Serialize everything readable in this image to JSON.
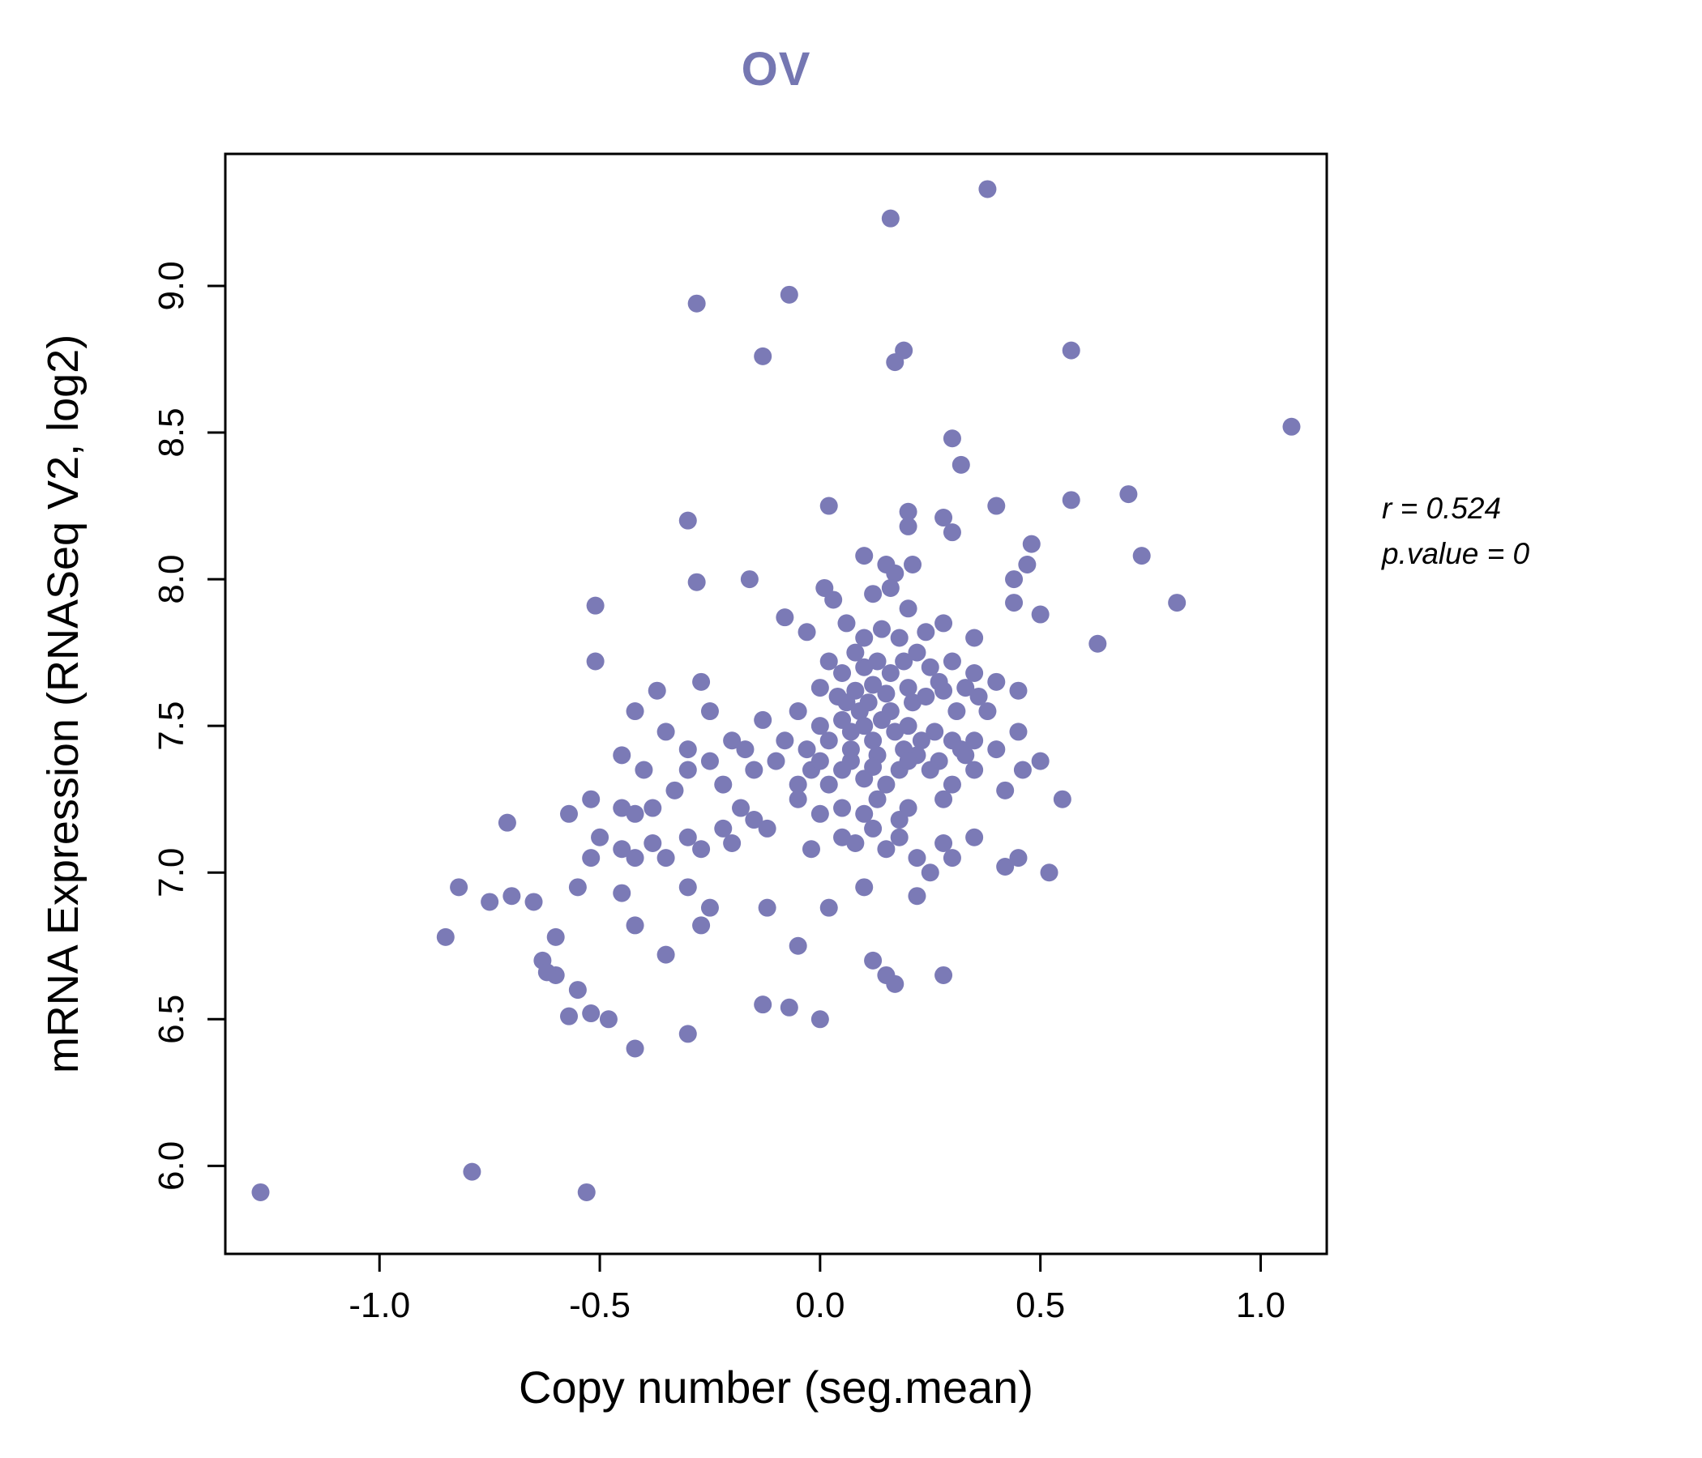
{
  "chart_data": {
    "type": "scatter",
    "title": "OV",
    "xlabel": "Copy number (seg.mean)",
    "ylabel": "mRNA Expression (RNASeq V2, log2)",
    "annotation": {
      "line1": "r = 0.524",
      "line2": "p.value = 0"
    },
    "xlim": [
      -1.35,
      1.15
    ],
    "ylim": [
      5.7,
      9.45
    ],
    "x_ticks": [
      -1.0,
      -0.5,
      0.0,
      0.5,
      1.0
    ],
    "x_tick_labels": [
      "-1.0",
      "-0.5",
      "0.0",
      "0.5",
      "1.0"
    ],
    "y_ticks": [
      6.0,
      6.5,
      7.0,
      7.5,
      8.0,
      8.5,
      9.0
    ],
    "y_tick_labels": [
      "6.0",
      "6.5",
      "7.0",
      "7.5",
      "8.0",
      "8.5",
      "9.0"
    ],
    "grid": false,
    "legend": "none",
    "point_color": "#7b7ab6",
    "title_color": "#7577b2",
    "axis_color": "#000000",
    "points": [
      [
        0.38,
        9.33
      ],
      [
        0.16,
        9.23
      ],
      [
        -0.07,
        8.97
      ],
      [
        -0.28,
        8.94
      ],
      [
        0.19,
        8.78
      ],
      [
        0.17,
        8.74
      ],
      [
        -0.13,
        8.76
      ],
      [
        0.57,
        8.78
      ],
      [
        1.07,
        8.52
      ],
      [
        0.3,
        8.48
      ],
      [
        0.32,
        8.39
      ],
      [
        0.7,
        8.29
      ],
      [
        0.57,
        8.27
      ],
      [
        0.02,
        8.25
      ],
      [
        0.4,
        8.25
      ],
      [
        -0.3,
        8.2
      ],
      [
        0.2,
        8.23
      ],
      [
        0.2,
        8.18
      ],
      [
        0.28,
        8.21
      ],
      [
        0.3,
        8.16
      ],
      [
        0.48,
        8.12
      ],
      [
        0.73,
        8.08
      ],
      [
        0.1,
        8.08
      ],
      [
        0.15,
        8.05
      ],
      [
        0.17,
        8.02
      ],
      [
        0.21,
        8.05
      ],
      [
        0.47,
        8.05
      ],
      [
        0.44,
        8.0
      ],
      [
        -0.28,
        7.99
      ],
      [
        -0.16,
        8.0
      ],
      [
        0.01,
        7.97
      ],
      [
        0.03,
        7.93
      ],
      [
        0.81,
        7.92
      ],
      [
        -0.51,
        7.91
      ],
      [
        0.12,
        7.95
      ],
      [
        0.16,
        7.97
      ],
      [
        0.2,
        7.9
      ],
      [
        0.44,
        7.92
      ],
      [
        0.5,
        7.88
      ],
      [
        0.63,
        7.78
      ],
      [
        -0.08,
        7.87
      ],
      [
        -0.03,
        7.82
      ],
      [
        0.06,
        7.85
      ],
      [
        0.1,
        7.8
      ],
      [
        0.14,
        7.83
      ],
      [
        0.18,
        7.8
      ],
      [
        0.24,
        7.82
      ],
      [
        0.28,
        7.85
      ],
      [
        0.35,
        7.8
      ],
      [
        -0.51,
        7.72
      ],
      [
        0.02,
        7.72
      ],
      [
        0.05,
        7.68
      ],
      [
        0.08,
        7.75
      ],
      [
        0.1,
        7.7
      ],
      [
        0.13,
        7.72
      ],
      [
        0.16,
        7.68
      ],
      [
        0.19,
        7.72
      ],
      [
        0.22,
        7.75
      ],
      [
        0.25,
        7.7
      ],
      [
        0.3,
        7.72
      ],
      [
        0.35,
        7.68
      ],
      [
        0.27,
        7.65
      ],
      [
        -0.37,
        7.62
      ],
      [
        -0.27,
        7.65
      ],
      [
        0.0,
        7.63
      ],
      [
        0.04,
        7.6
      ],
      [
        0.08,
        7.62
      ],
      [
        0.12,
        7.64
      ],
      [
        0.15,
        7.61
      ],
      [
        0.2,
        7.63
      ],
      [
        0.28,
        7.62
      ],
      [
        0.33,
        7.63
      ],
      [
        0.36,
        7.6
      ],
      [
        0.4,
        7.65
      ],
      [
        0.45,
        7.62
      ],
      [
        0.06,
        7.58
      ],
      [
        0.09,
        7.55
      ],
      [
        0.11,
        7.58
      ],
      [
        0.16,
        7.55
      ],
      [
        0.21,
        7.58
      ],
      [
        0.24,
        7.6
      ],
      [
        0.31,
        7.55
      ],
      [
        0.38,
        7.55
      ],
      [
        -0.42,
        7.55
      ],
      [
        -0.35,
        7.48
      ],
      [
        -0.25,
        7.55
      ],
      [
        -0.2,
        7.45
      ],
      [
        -0.13,
        7.52
      ],
      [
        -0.05,
        7.55
      ],
      [
        0.0,
        7.5
      ],
      [
        0.02,
        7.45
      ],
      [
        0.05,
        7.52
      ],
      [
        0.07,
        7.48
      ],
      [
        0.1,
        7.5
      ],
      [
        0.12,
        7.45
      ],
      [
        0.14,
        7.52
      ],
      [
        0.17,
        7.48
      ],
      [
        0.2,
        7.5
      ],
      [
        0.23,
        7.45
      ],
      [
        0.26,
        7.48
      ],
      [
        0.3,
        7.45
      ],
      [
        0.32,
        7.42
      ],
      [
        0.35,
        7.45
      ],
      [
        0.4,
        7.42
      ],
      [
        -0.3,
        7.42
      ],
      [
        -0.17,
        7.42
      ],
      [
        0.45,
        7.48
      ],
      [
        0.07,
        7.42
      ],
      [
        0.13,
        7.4
      ],
      [
        0.19,
        7.42
      ],
      [
        0.22,
        7.4
      ],
      [
        0.27,
        7.38
      ],
      [
        0.33,
        7.4
      ],
      [
        -0.08,
        7.45
      ],
      [
        -0.03,
        7.42
      ],
      [
        0.46,
        7.35
      ],
      [
        -0.71,
        7.17
      ],
      [
        -0.57,
        7.2
      ],
      [
        -0.52,
        7.25
      ],
      [
        -0.45,
        7.22
      ],
      [
        -0.42,
        7.2
      ],
      [
        -0.38,
        7.22
      ],
      [
        -0.33,
        7.28
      ],
      [
        -0.3,
        7.35
      ],
      [
        -0.25,
        7.38
      ],
      [
        -0.22,
        7.3
      ],
      [
        -0.15,
        7.35
      ],
      [
        -0.1,
        7.38
      ],
      [
        -0.05,
        7.3
      ],
      [
        -0.02,
        7.35
      ],
      [
        0.0,
        7.38
      ],
      [
        0.02,
        7.3
      ],
      [
        0.05,
        7.35
      ],
      [
        0.07,
        7.38
      ],
      [
        0.1,
        7.32
      ],
      [
        0.12,
        7.36
      ],
      [
        0.15,
        7.3
      ],
      [
        0.18,
        7.35
      ],
      [
        0.2,
        7.38
      ],
      [
        0.25,
        7.35
      ],
      [
        0.3,
        7.3
      ],
      [
        0.35,
        7.35
      ],
      [
        0.28,
        7.25
      ],
      [
        0.5,
        7.38
      ],
      [
        0.42,
        7.28
      ],
      [
        0.13,
        7.25
      ],
      [
        0.05,
        7.22
      ],
      [
        -0.05,
        7.25
      ],
      [
        0.2,
        7.22
      ],
      [
        0.55,
        7.25
      ],
      [
        0.1,
        7.2
      ],
      [
        0.0,
        7.2
      ],
      [
        -0.18,
        7.22
      ],
      [
        -0.22,
        7.15
      ],
      [
        -0.4,
        7.35
      ],
      [
        -0.45,
        7.4
      ],
      [
        -0.5,
        7.12
      ],
      [
        -0.45,
        7.08
      ],
      [
        -0.42,
        7.05
      ],
      [
        -0.38,
        7.1
      ],
      [
        -0.35,
        7.05
      ],
      [
        -0.3,
        7.12
      ],
      [
        -0.27,
        7.08
      ],
      [
        -0.52,
        7.05
      ],
      [
        -0.2,
        7.1
      ],
      [
        -0.12,
        7.15
      ],
      [
        0.08,
        7.1
      ],
      [
        0.15,
        7.08
      ],
      [
        0.18,
        7.12
      ],
      [
        0.22,
        7.05
      ],
      [
        0.25,
        7.0
      ],
      [
        0.3,
        7.05
      ],
      [
        0.42,
        7.02
      ],
      [
        0.45,
        7.05
      ],
      [
        0.52,
        7.0
      ],
      [
        0.18,
        7.18
      ],
      [
        0.12,
        7.15
      ],
      [
        0.05,
        7.12
      ],
      [
        -0.02,
        7.08
      ],
      [
        0.35,
        7.12
      ],
      [
        0.28,
        7.1
      ],
      [
        -0.15,
        7.18
      ],
      [
        -0.82,
        6.95
      ],
      [
        -0.75,
        6.9
      ],
      [
        -0.7,
        6.92
      ],
      [
        -0.65,
        6.9
      ],
      [
        -0.55,
        6.95
      ],
      [
        -0.45,
        6.93
      ],
      [
        -0.3,
        6.95
      ],
      [
        -0.25,
        6.88
      ],
      [
        -0.27,
        6.82
      ],
      [
        -0.12,
        6.88
      ],
      [
        0.02,
        6.88
      ],
      [
        0.1,
        6.95
      ],
      [
        0.22,
        6.92
      ],
      [
        -0.85,
        6.78
      ],
      [
        -0.6,
        6.78
      ],
      [
        -0.42,
        6.82
      ],
      [
        -0.63,
        6.7
      ],
      [
        -0.6,
        6.65
      ],
      [
        -0.35,
        6.72
      ],
      [
        -0.05,
        6.75
      ],
      [
        0.12,
        6.7
      ],
      [
        0.15,
        6.65
      ],
      [
        0.17,
        6.62
      ],
      [
        0.28,
        6.65
      ],
      [
        -0.62,
        6.66
      ],
      [
        -0.55,
        6.6
      ],
      [
        -0.52,
        6.52
      ],
      [
        -0.57,
        6.51
      ],
      [
        -0.48,
        6.5
      ],
      [
        -0.13,
        6.55
      ],
      [
        -0.07,
        6.54
      ],
      [
        0.0,
        6.5
      ],
      [
        -0.3,
        6.45
      ],
      [
        -0.42,
        6.4
      ],
      [
        -1.27,
        5.91
      ],
      [
        -0.79,
        5.98
      ],
      [
        -0.53,
        5.91
      ]
    ]
  }
}
